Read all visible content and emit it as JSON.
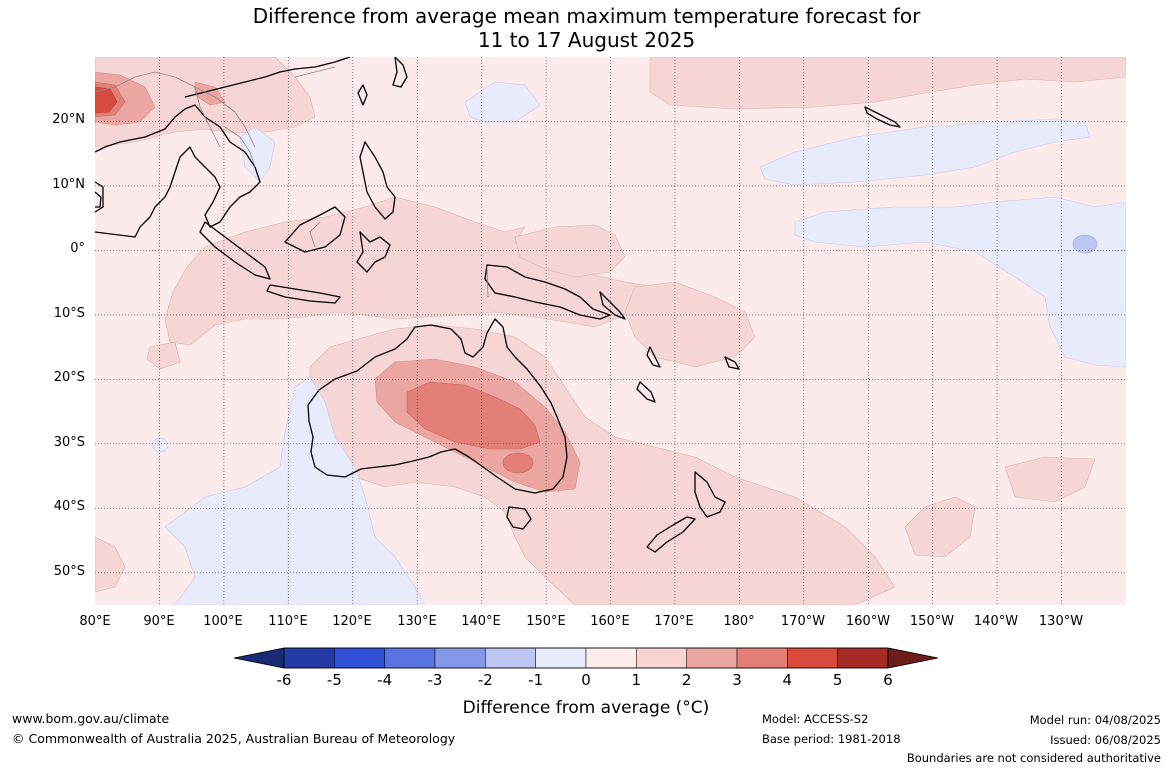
{
  "title": {
    "line1": "Difference from average mean maximum temperature forecast for",
    "line2": "11 to 17 August 2025"
  },
  "map": {
    "latitude_labels": [
      "20°N",
      "10°N",
      "0°",
      "10°S",
      "20°S",
      "30°S",
      "40°S",
      "50°S"
    ],
    "longitude_labels": [
      "80°E",
      "90°E",
      "100°E",
      "110°E",
      "120°E",
      "130°E",
      "140°E",
      "150°E",
      "160°E",
      "170°E",
      "180°",
      "170°W",
      "160°W",
      "150°W",
      "140°W",
      "130°W"
    ],
    "extent": {
      "lon_min": 80,
      "lon_max": 240,
      "lat_min": -55,
      "lat_max": 30
    },
    "dominant_anomaly": "0 to 1",
    "features": [
      {
        "region": "central and southern Australia",
        "anomaly_range": "2 to 3"
      },
      {
        "region": "South Australia / western Victoria",
        "anomaly_range": "3 to 4"
      },
      {
        "region": "northern Bay of Bengal",
        "anomaly_range": "4 to 5"
      },
      {
        "region": "equatorial central Pacific",
        "anomaly_range": "-1 to 0"
      },
      {
        "region": "eastern Indian Ocean south of Australia",
        "anomaly_range": "-1 to 0"
      }
    ]
  },
  "colorbar": {
    "ticks": [
      "-6",
      "-5",
      "-4",
      "-3",
      "-2",
      "-1",
      "0",
      "1",
      "2",
      "3",
      "4",
      "5",
      "6"
    ],
    "colors": [
      "#243ba6",
      "#2f4fd6",
      "#5a73e2",
      "#8497e9",
      "#bdc6f2",
      "#e8ebfb",
      "#fdecec",
      "#f7d3d2",
      "#eba6a2",
      "#e47f77",
      "#d84a3c",
      "#a82a24"
    ],
    "under_color": "#1a2a75",
    "over_color": "#6e1c1a",
    "label": "Difference from average (°C)"
  },
  "footer": {
    "website": "www.bom.gov.au/climate",
    "copyright": "© Commonwealth of Australia 2025, Australian Bureau of Meteorology",
    "model": "Model: ACCESS-S2",
    "base_period": "Base period: 1981-2018",
    "model_run": "Model run: 04/08/2025",
    "issued": "Issued: 06/08/2025",
    "disclaimer": "Boundaries are not considered authoritative"
  }
}
